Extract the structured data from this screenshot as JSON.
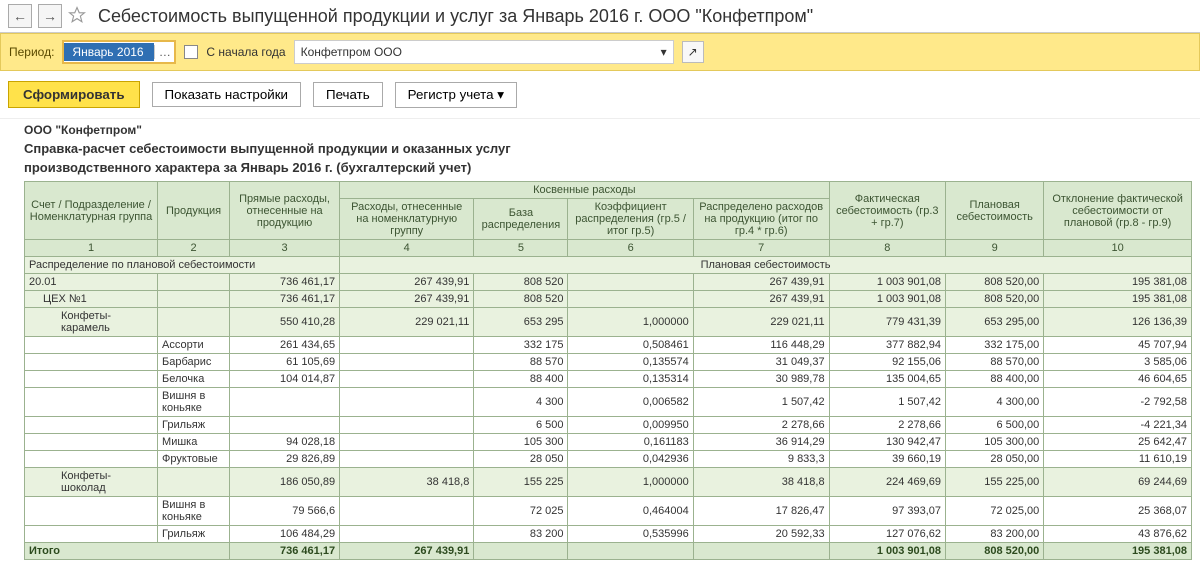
{
  "header": {
    "title": "Себестоимость выпущенной продукции и услуг за Январь 2016 г. ООО \"Конфетпром\""
  },
  "filter": {
    "period_label": "Период:",
    "period_value": "Январь 2016",
    "from_start_label": "С начала года",
    "org_value": "Конфетпром ООО"
  },
  "toolbar": {
    "form": "Сформировать",
    "show_settings": "Показать настройки",
    "print": "Печать",
    "register": "Регистр учета"
  },
  "report": {
    "org": "ООО \"Конфетпром\"",
    "title_l1": "Справка-расчет себестоимости выпущенной продукции и оказанных услуг",
    "title_l2": "производственного характера за Январь 2016 г. (бухгалтерский учет)"
  },
  "columns": {
    "c1": "Счет /\nПодразделение /\nНоменклатурная группа",
    "c2": "Продукция",
    "c3": "Прямые расходы, отнесенные на продукцию",
    "indirect_group": "Косвенные расходы",
    "c4": "Расходы, отнесенные на номенклатурную группу",
    "c5": "База распределения",
    "c6": "Коэффициент распределения (гр.5 / итог гр.5)",
    "c7": "Распределено расходов на продукцию (итог по гр.4 * гр.6)",
    "c8": "Фактическая себестоимость (гр.3 + гр.7)",
    "c9": "Плановая себестоимость",
    "c10": "Отклонение фактической себестоимости от плановой (гр.8 - гр.9)"
  },
  "colnums": [
    "1",
    "2",
    "3",
    "4",
    "5",
    "6",
    "7",
    "8",
    "9",
    "10"
  ],
  "section1": {
    "left": "Распределение по плановой себестоимости",
    "right": "Плановая себестоимость"
  },
  "rows": [
    {
      "cls": "group-row",
      "c1": "20.01",
      "c2": "",
      "c3": "736 461,17",
      "c4": "267 439,91",
      "c5": "808 520",
      "c6": "",
      "c7": "267 439,91",
      "c8": "1 003 901,08",
      "c9": "808 520,00",
      "c10": "195 381,08"
    },
    {
      "cls": "group-row",
      "c1": "ЦЕХ №1",
      "indent": "indent1",
      "c2": "",
      "c3": "736 461,17",
      "c4": "267 439,91",
      "c5": "808 520",
      "c6": "",
      "c7": "267 439,91",
      "c8": "1 003 901,08",
      "c9": "808 520,00",
      "c10": "195 381,08"
    },
    {
      "cls": "group-row",
      "c1": "Конфеты-карамель",
      "indent": "indent2",
      "c2": "",
      "c3": "550 410,28",
      "c4": "229 021,11",
      "c5": "653 295",
      "c6": "1,000000",
      "c7": "229 021,11",
      "c8": "779 431,39",
      "c9": "653 295,00",
      "c10": "126 136,39"
    },
    {
      "cls": "",
      "c1": "",
      "c2": "Ассорти",
      "c3": "261 434,65",
      "c4": "",
      "c5": "332 175",
      "c6": "0,508461",
      "c7": "116 448,29",
      "c8": "377 882,94",
      "c9": "332 175,00",
      "c10": "45 707,94"
    },
    {
      "cls": "",
      "c1": "",
      "c2": "Барбарис",
      "c3": "61 105,69",
      "c4": "",
      "c5": "88 570",
      "c6": "0,135574",
      "c7": "31 049,37",
      "c8": "92 155,06",
      "c9": "88 570,00",
      "c10": "3 585,06"
    },
    {
      "cls": "",
      "c1": "",
      "c2": "Белочка",
      "c3": "104 014,87",
      "c4": "",
      "c5": "88 400",
      "c6": "0,135314",
      "c7": "30 989,78",
      "c8": "135 004,65",
      "c9": "88 400,00",
      "c10": "46 604,65"
    },
    {
      "cls": "",
      "c1": "",
      "c2": "Вишня в коньяке",
      "c3": "",
      "c4": "",
      "c5": "4 300",
      "c6": "0,006582",
      "c7": "1 507,42",
      "c8": "1 507,42",
      "c9": "4 300,00",
      "c10": "-2 792,58"
    },
    {
      "cls": "",
      "c1": "",
      "c2": "Грильяж",
      "c3": "",
      "c4": "",
      "c5": "6 500",
      "c6": "0,009950",
      "c7": "2 278,66",
      "c8": "2 278,66",
      "c9": "6 500,00",
      "c10": "-4 221,34"
    },
    {
      "cls": "",
      "c1": "",
      "c2": "Мишка",
      "c3": "94 028,18",
      "c4": "",
      "c5": "105 300",
      "c6": "0,161183",
      "c7": "36 914,29",
      "c8": "130 942,47",
      "c9": "105 300,00",
      "c10": "25 642,47"
    },
    {
      "cls": "",
      "c1": "",
      "c2": "Фруктовые",
      "c3": "29 826,89",
      "c4": "",
      "c5": "28 050",
      "c6": "0,042936",
      "c7": "9 833,3",
      "c8": "39 660,19",
      "c9": "28 050,00",
      "c10": "11 610,19"
    },
    {
      "cls": "group-row",
      "c1": "Конфеты-шоколад",
      "indent": "indent2",
      "c2": "",
      "c3": "186 050,89",
      "c4": "38 418,8",
      "c5": "155 225",
      "c6": "1,000000",
      "c7": "38 418,8",
      "c8": "224 469,69",
      "c9": "155 225,00",
      "c10": "69 244,69"
    },
    {
      "cls": "",
      "c1": "",
      "c2": "Вишня в коньяке",
      "c3": "79 566,6",
      "c4": "",
      "c5": "72 025",
      "c6": "0,464004",
      "c7": "17 826,47",
      "c8": "97 393,07",
      "c9": "72 025,00",
      "c10": "25 368,07"
    },
    {
      "cls": "",
      "c1": "",
      "c2": "Грильяж",
      "c3": "106 484,29",
      "c4": "",
      "c5": "83 200",
      "c6": "0,535996",
      "c7": "20 592,33",
      "c8": "127 076,62",
      "c9": "83 200,00",
      "c10": "43 876,62"
    }
  ],
  "total": {
    "label": "Итого",
    "c3": "736 461,17",
    "c4": "267 439,91",
    "c5": "",
    "c6": "",
    "c7": "",
    "c8": "1 003 901,08",
    "c9": "808 520,00",
    "c10": "195 381,08"
  }
}
